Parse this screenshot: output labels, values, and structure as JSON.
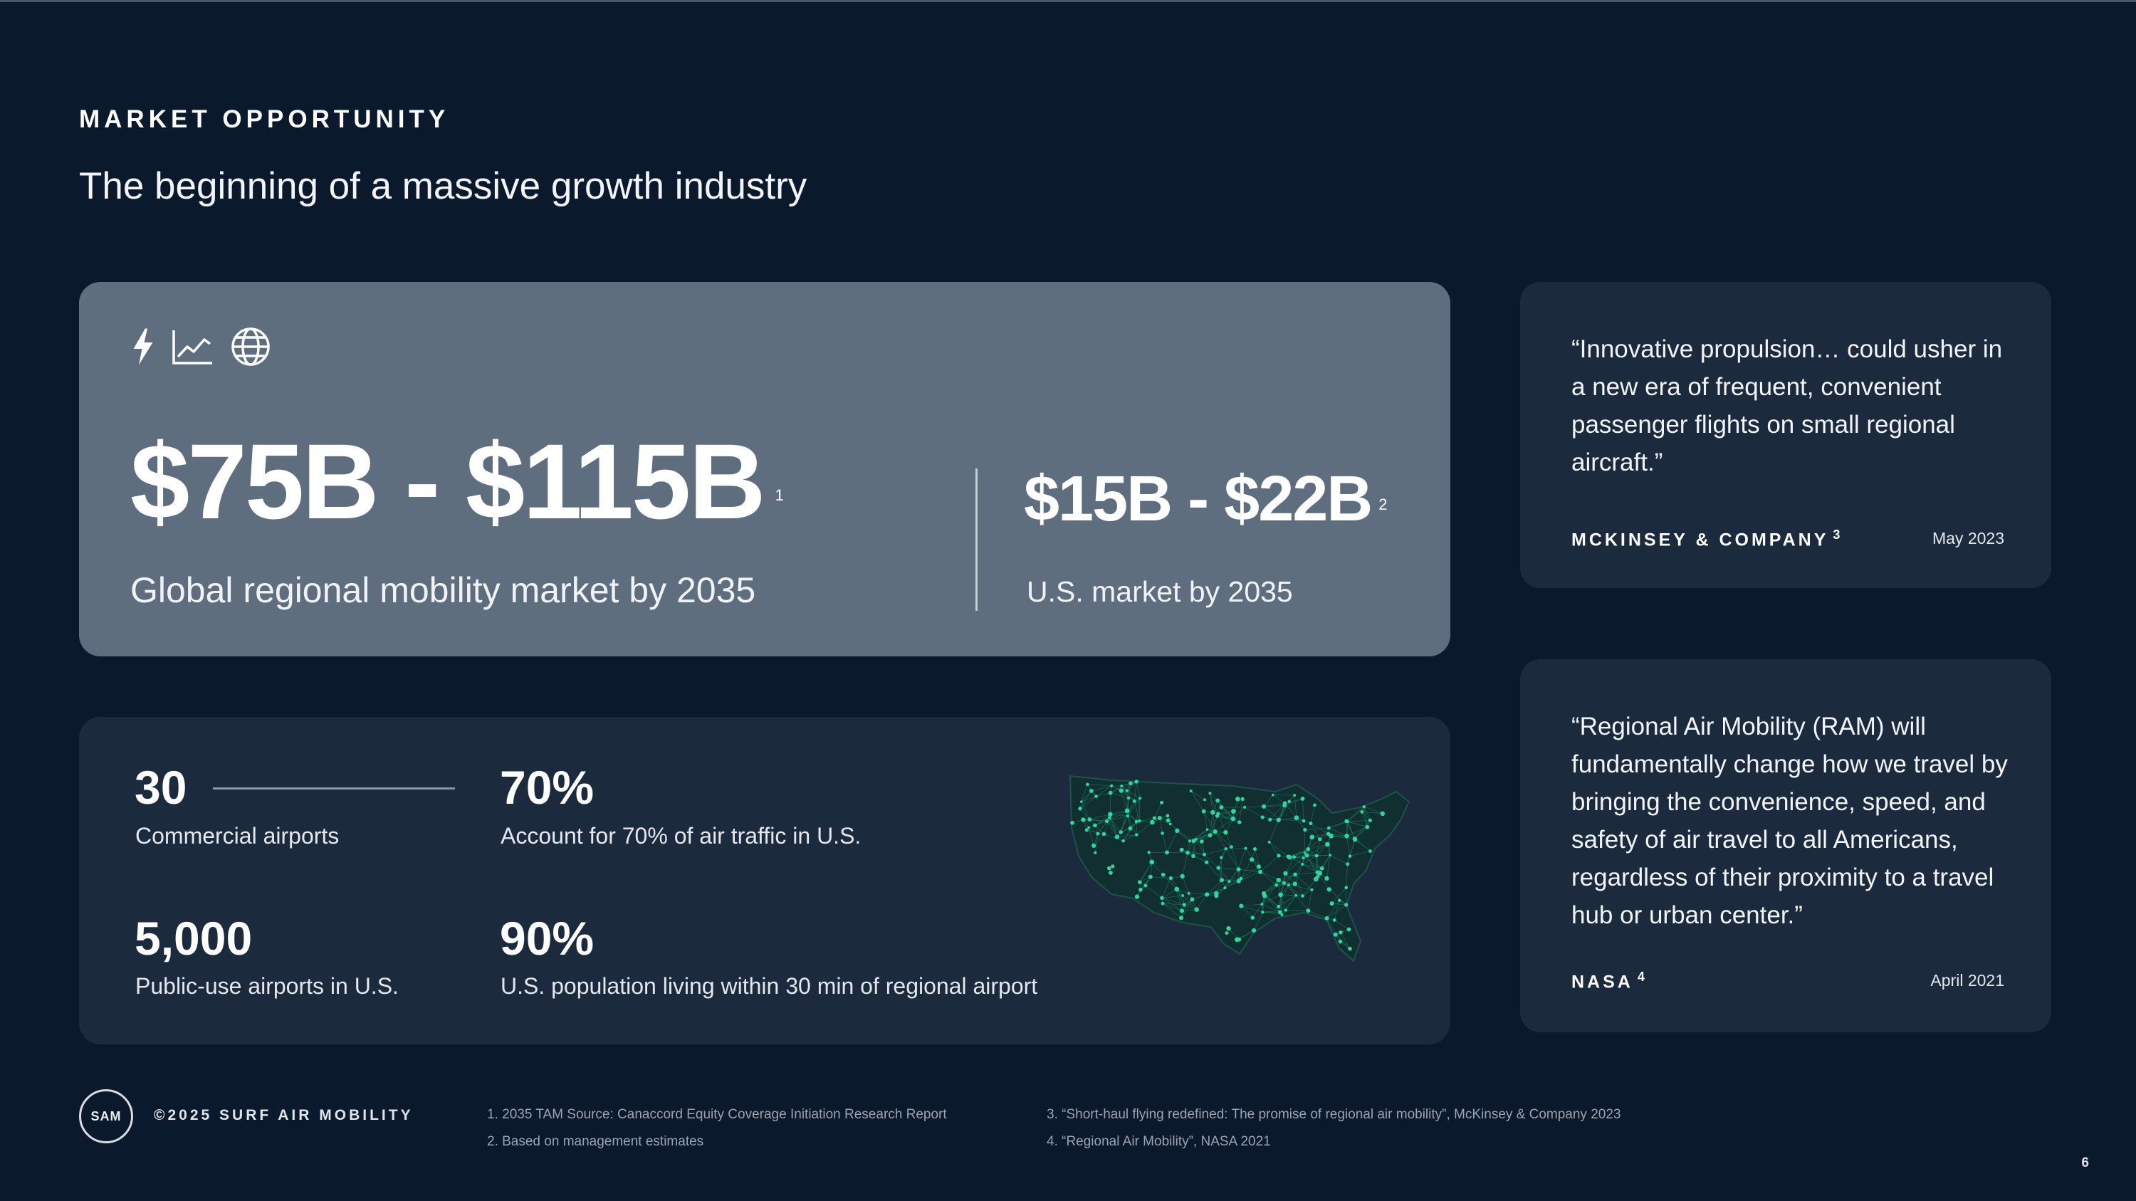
{
  "header": {
    "eyebrow": "MARKET OPPORTUNITY",
    "title": "The beginning of a massive growth industry"
  },
  "icons": [
    "lightning-icon",
    "line-chart-icon",
    "globe-icon"
  ],
  "main_card": {
    "global_value": "$75B - $115B",
    "global_footnote": "1",
    "global_caption": "Global regional mobility market by 2035",
    "us_value": "$15B - $22B",
    "us_footnote": "2",
    "us_caption": "U.S. market by 2035"
  },
  "stats": [
    {
      "value": "30",
      "label": "Commercial airports"
    },
    {
      "value": "70%",
      "label": "Account for 70% of air traffic in U.S."
    },
    {
      "value": "5,000",
      "label": "Public-use airports in U.S."
    },
    {
      "value": "90%",
      "label": "U.S. population living within 30 min of regional airport"
    }
  ],
  "quotes": [
    {
      "text": "“Innovative propulsion… could usher in a new era of frequent, convenient passenger flights on small regional aircraft.”",
      "source": "MCKINSEY & COMPANY",
      "footnote": "3",
      "date": "May 2023"
    },
    {
      "text": "“Regional Air Mobility (RAM) will fundamentally change how we travel by bringing the convenience, speed, and safety of air travel to all Americans, regardless of their proximity to a travel hub or urban center.”",
      "source": "NASA",
      "footnote": "4",
      "date": "April 2021"
    }
  ],
  "footer": {
    "logo": "SAM",
    "copyright": "©2025 SURF AIR MOBILITY",
    "footnotes": [
      "1. 2035 TAM Source: Canaccord Equity Coverage Initiation Research Report",
      "2. Based on management estimates",
      "3. “Short-haul flying redefined: The promise of regional air mobility”, McKinsey & Company 2023",
      "4. “Regional Air Mobility”, NASA 2021"
    ],
    "page_number": "6"
  },
  "colors": {
    "background": "#0b192d",
    "card_grey": "#5f6e7e",
    "card_dark": "#1b2a3c",
    "map_accent": "#2fd6a0"
  }
}
